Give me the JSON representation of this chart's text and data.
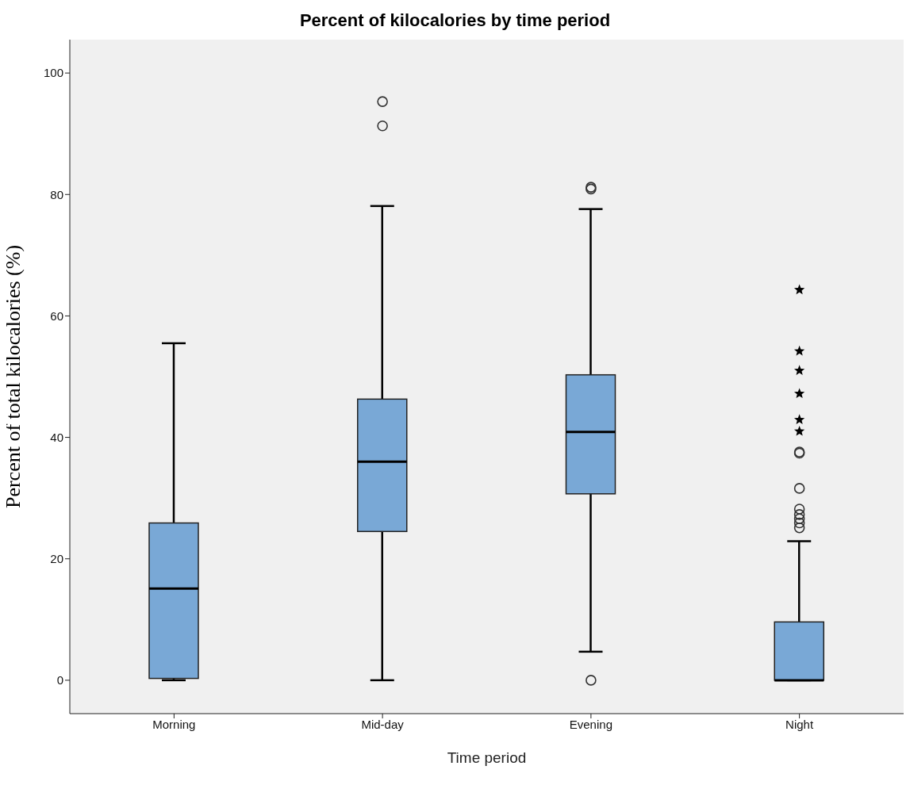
{
  "chart_data": {
    "type": "box",
    "title": "Percent of kilocalories by time period",
    "xlabel": "Time period",
    "ylabel": "Percent of total kilocalories  (%)",
    "categories": [
      "Morning",
      "Mid-day",
      "Evening",
      "Night"
    ],
    "series": [
      {
        "color": "#79a8d6",
        "boxes": [
          {
            "low": 0,
            "q1": 0.3,
            "median": 15.1,
            "q3": 25.9,
            "high": 55.5
          },
          {
            "low": 0,
            "q1": 24.5,
            "median": 36.0,
            "q3": 46.3,
            "high": 78.1,
            "outliers": [
              95.3,
              91.3
            ]
          },
          {
            "low": 4.7,
            "q1": 30.7,
            "median": 40.9,
            "q3": 50.3,
            "high": 77.6,
            "outliers": [
              81.2,
              80.9,
              0
            ]
          },
          {
            "low": 0,
            "q1": 0,
            "median": 0,
            "q3": 9.6,
            "high": 22.9,
            "outliers": [
              64.3,
              54.2,
              51.0,
              47.2,
              42.9,
              41.0,
              37.6,
              37.4,
              31.6,
              28.2,
              27.3,
              26.6,
              25.9,
              25.1
            ]
          }
        ]
      }
    ],
    "ylim": [
      -5.5,
      105.5
    ],
    "yticks": [
      0,
      20,
      40,
      60,
      80,
      100
    ],
    "grid": false,
    "legend": false
  }
}
